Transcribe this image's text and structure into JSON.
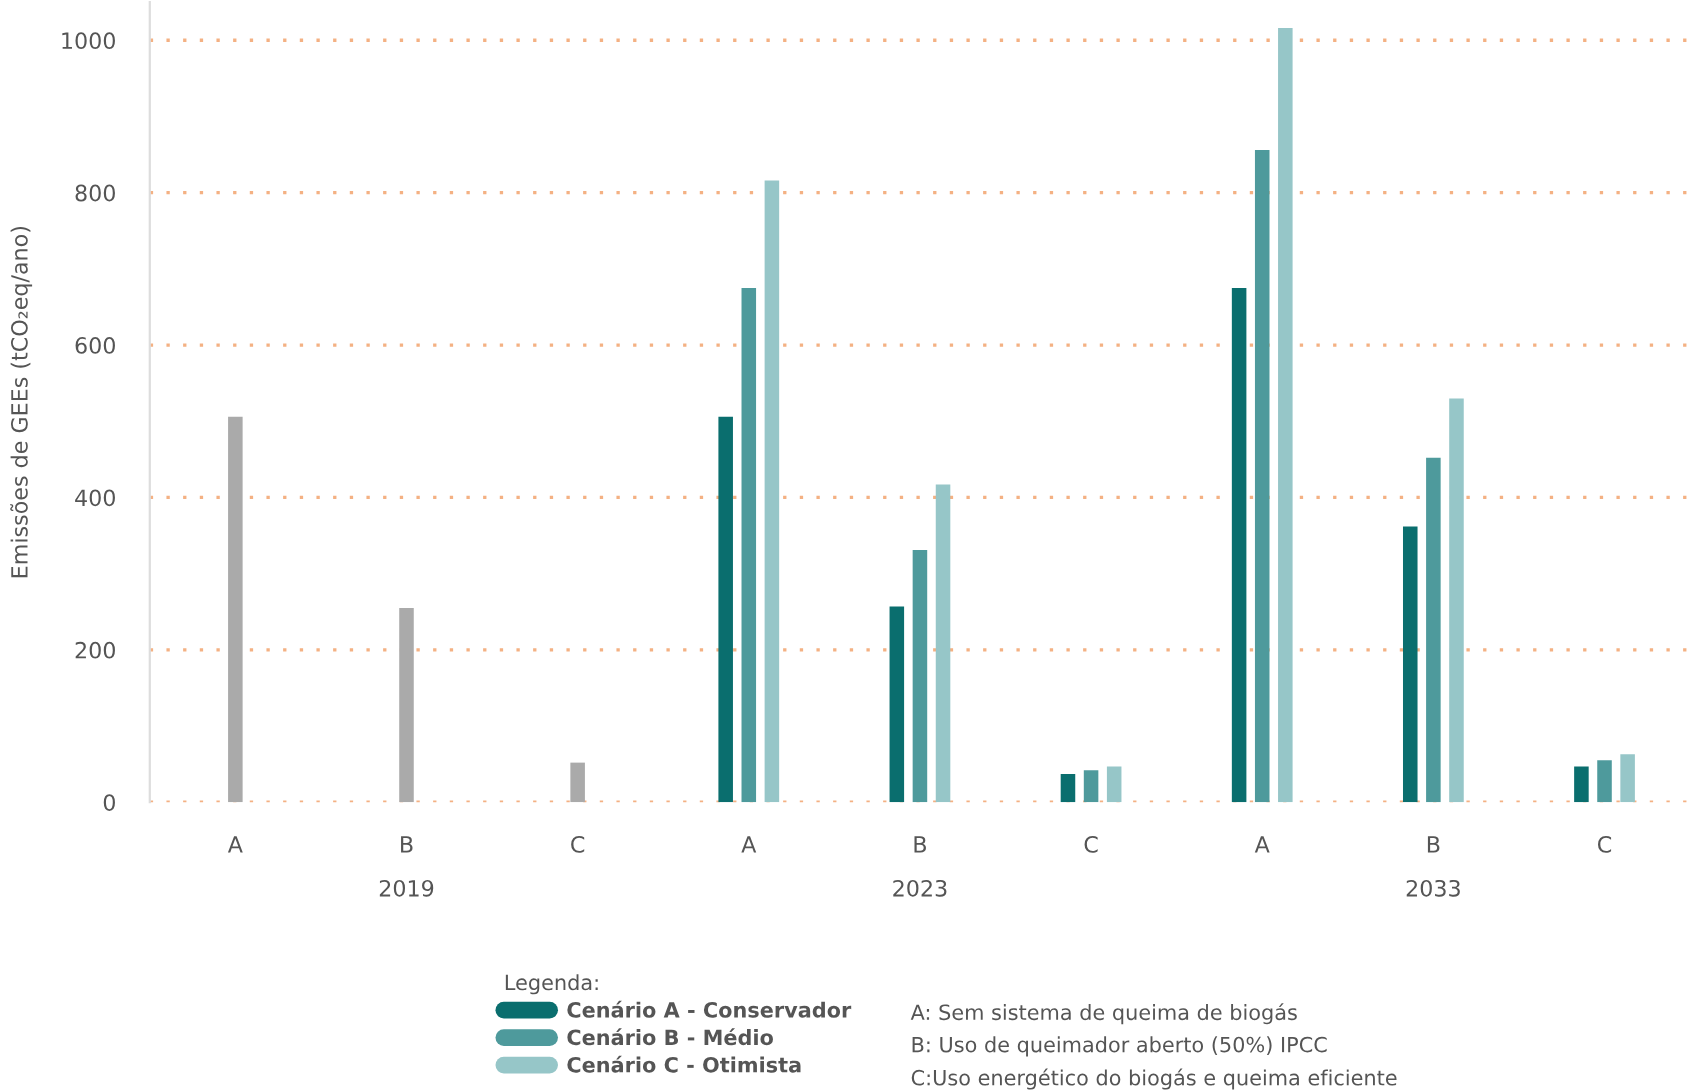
{
  "chart_data": {
    "type": "bar",
    "ylabel": "Emissões de GEEs (tCO₂eq/ano)",
    "legend_title": "Legenda:",
    "categories": [
      "A",
      "B",
      "C",
      "A",
      "B",
      "C",
      "A",
      "B",
      "C"
    ],
    "series": [
      {
        "color": "#aaaaaa",
        "values": [
          506,
          255,
          52,
          null,
          null,
          null,
          null,
          null,
          null
        ]
      },
      {
        "name": "Cenário A - Conservador",
        "color": "#0a6e6e",
        "values": [
          null,
          null,
          null,
          506,
          257,
          37,
          675,
          362,
          47
        ]
      },
      {
        "name": "Cenário B - Médio",
        "color": "#4e9a9c",
        "values": [
          null,
          null,
          null,
          675,
          331,
          42,
          856,
          452,
          55
        ]
      },
      {
        "name": "Cenário C - Otimista",
        "color": "#96c6c8",
        "values": [
          null,
          null,
          null,
          816,
          417,
          47,
          1016,
          530,
          63
        ]
      }
    ],
    "ylim": [
      0,
      1050
    ],
    "yticks": [
      0,
      200,
      400,
      600,
      800,
      1000
    ],
    "grid": "y",
    "legend": "bottom",
    "annotations": [
      "2019",
      "2023",
      "2033",
      "A: Sem sistema de queima de biogás",
      "B: Uso de queimador aberto (50%) IPCC",
      "C:Uso energético do biogás e queima eficiente"
    ]
  }
}
